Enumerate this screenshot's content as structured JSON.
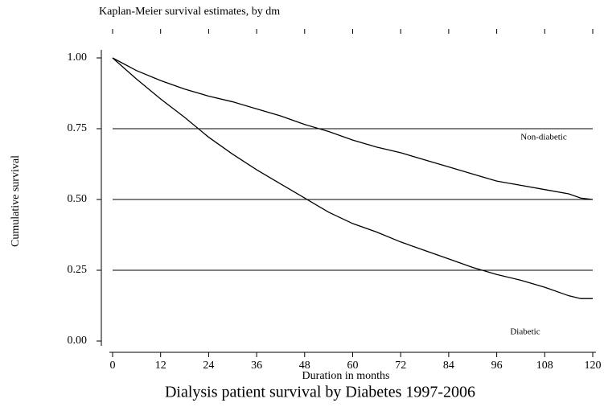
{
  "chart_data": {
    "type": "line",
    "title": "Kaplan-Meier survival estimates, by dm",
    "caption": "Dialysis patient survival by Diabetes 1997-2006",
    "xlabel": "Duration in months",
    "ylabel": "Cumulative survival",
    "x": [
      0,
      6,
      12,
      18,
      24,
      30,
      36,
      42,
      48,
      54,
      60,
      66,
      72,
      78,
      84,
      90,
      96,
      102,
      108,
      114,
      117,
      120
    ],
    "series": [
      {
        "name": "Non-diabetic",
        "color": "#000000",
        "values": [
          1.0,
          0.955,
          0.92,
          0.89,
          0.865,
          0.845,
          0.82,
          0.795,
          0.765,
          0.74,
          0.71,
          0.685,
          0.665,
          0.64,
          0.615,
          0.59,
          0.565,
          0.55,
          0.535,
          0.52,
          0.505,
          0.5
        ]
      },
      {
        "name": "Diabetic",
        "color": "#000000",
        "values": [
          1.0,
          0.925,
          0.855,
          0.79,
          0.72,
          0.66,
          0.605,
          0.555,
          0.505,
          0.455,
          0.415,
          0.385,
          0.35,
          0.32,
          0.29,
          0.26,
          0.235,
          0.215,
          0.19,
          0.16,
          0.15,
          0.15
        ]
      }
    ],
    "xlim": [
      0,
      120
    ],
    "xticks": [
      0,
      12,
      24,
      36,
      48,
      60,
      72,
      84,
      96,
      108,
      120
    ],
    "ylim": [
      0,
      1
    ],
    "yticks": [
      {
        "value": 0,
        "label": "0.00"
      },
      {
        "value": 0.25,
        "label": "0.25"
      },
      {
        "value": 0.5,
        "label": "0.50"
      },
      {
        "value": 0.75,
        "label": "0.75"
      },
      {
        "value": 1,
        "label": "1.00"
      }
    ],
    "grid": true
  }
}
